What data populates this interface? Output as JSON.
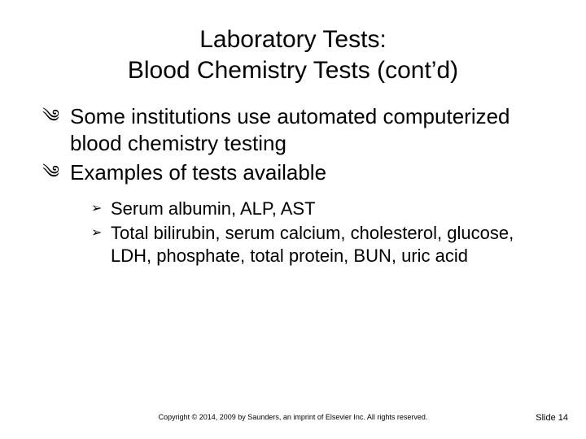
{
  "slide": {
    "title_line1": "Laboratory Tests:",
    "title_line2": "Blood Chemistry Tests (cont’d)",
    "bullets": [
      {
        "text": "Some institutions use automated computerized blood chemistry testing"
      },
      {
        "text": "Examples of tests available"
      }
    ],
    "sub_bullets": [
      {
        "text": "Serum albumin, ALP, AST"
      },
      {
        "text": "Total bilirubin, serum calcium, cholesterol, glucose, LDH, phosphate, total protein, BUN, uric acid"
      }
    ],
    "copyright": "Copyright © 2014, 2009 by Saunders, an imprint of Elsevier Inc. All rights reserved.",
    "slide_number": "Slide 14"
  },
  "style": {
    "background_color": "#ffffff",
    "title_fontsize": 30,
    "body_l1_fontsize": 26,
    "body_l2_fontsize": 22,
    "footer_fontsize": 9,
    "slidenum_fontsize": 11,
    "text_color": "#000000",
    "l1_marker": "༄",
    "l2_marker": "➢"
  }
}
